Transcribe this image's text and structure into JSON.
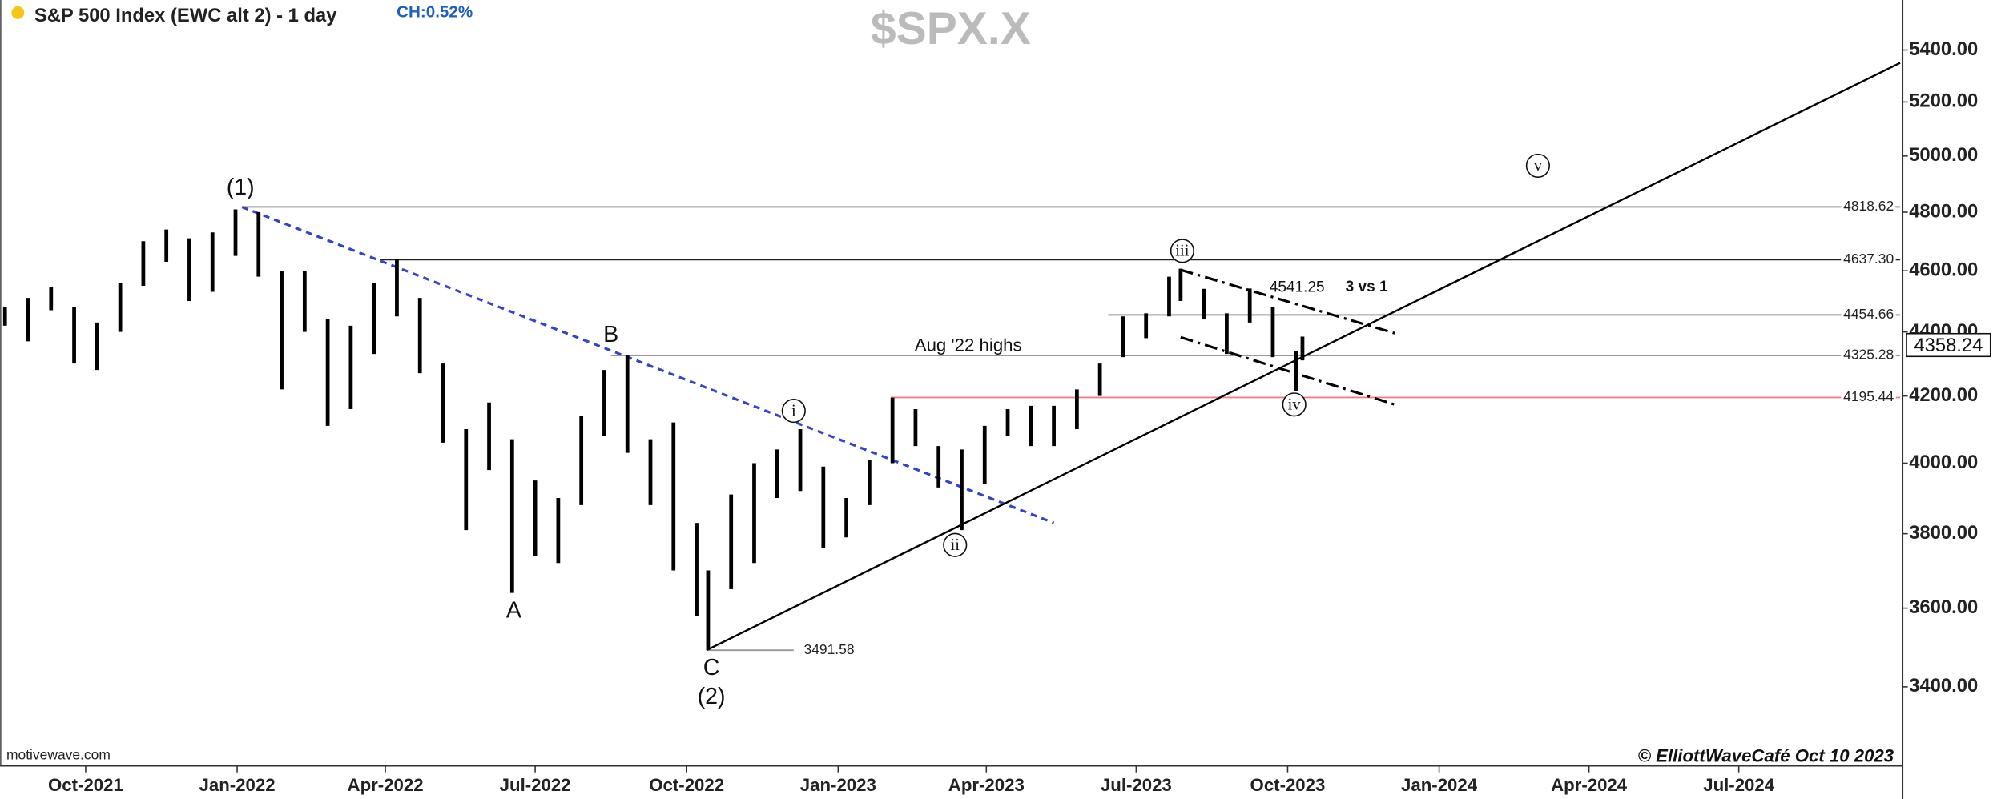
{
  "chart_data": {
    "type": "ohlc",
    "title": "S&P 500 Index (EWC alt 2) - 1 day",
    "change": "CH:0.52%",
    "symbol": "$SPX.X",
    "source": "motivewave.com",
    "credit": "© ElliottWaveCafé Oct 10 2023",
    "log_scale": true,
    "color": "#000000",
    "x": [
      "2021-08-13",
      "2021-08-27",
      "2021-09-10",
      "2021-09-24",
      "2021-10-08",
      "2021-10-22",
      "2021-11-05",
      "2021-11-19",
      "2021-12-03",
      "2021-12-17",
      "2021-12-31",
      "2022-01-14",
      "2022-01-28",
      "2022-02-11",
      "2022-02-25",
      "2022-03-11",
      "2022-03-25",
      "2022-04-08",
      "2022-04-22",
      "2022-05-06",
      "2022-05-20",
      "2022-06-03",
      "2022-06-17",
      "2022-07-01",
      "2022-07-15",
      "2022-07-29",
      "2022-08-12",
      "2022-08-26",
      "2022-09-09",
      "2022-09-23",
      "2022-10-07",
      "2022-10-14",
      "2022-10-28",
      "2022-11-11",
      "2022-11-25",
      "2022-12-09",
      "2022-12-23",
      "2023-01-06",
      "2023-01-20",
      "2023-02-03",
      "2023-02-17",
      "2023-03-03",
      "2023-03-17",
      "2023-03-31",
      "2023-04-14",
      "2023-04-28",
      "2023-05-12",
      "2023-05-26",
      "2023-06-09",
      "2023-06-23",
      "2023-07-07",
      "2023-07-21",
      "2023-07-28",
      "2023-08-11",
      "2023-08-25",
      "2023-09-08",
      "2023-09-22",
      "2023-10-06",
      "2023-10-10"
    ],
    "high": [
      4480,
      4510,
      4545,
      4480,
      4430,
      4560,
      4700,
      4740,
      4710,
      4730,
      4810,
      4800,
      4600,
      4600,
      4440,
      4420,
      4560,
      4640,
      4510,
      4300,
      4100,
      4180,
      4070,
      3950,
      3900,
      4140,
      4280,
      4325,
      4070,
      4120,
      3830,
      3700,
      3910,
      4000,
      4040,
      4100,
      3990,
      3900,
      4010,
      4195,
      4160,
      4050,
      4040,
      4110,
      4160,
      4170,
      4170,
      4220,
      4300,
      4450,
      4460,
      4580,
      4607,
      4540,
      4460,
      4541,
      4480,
      4340,
      4385
    ],
    "low": [
      4420,
      4370,
      4470,
      4300,
      4280,
      4400,
      4550,
      4630,
      4500,
      4530,
      4650,
      4580,
      4220,
      4400,
      4110,
      4160,
      4330,
      4450,
      4270,
      4060,
      3810,
      3980,
      3640,
      3740,
      3720,
      3880,
      4080,
      4030,
      3880,
      3700,
      3580,
      3492,
      3650,
      3720,
      3900,
      3920,
      3760,
      3790,
      3880,
      4000,
      4050,
      3930,
      3810,
      3940,
      4080,
      4050,
      4050,
      4100,
      4200,
      4320,
      4380,
      4450,
      4500,
      4440,
      4330,
      4430,
      4320,
      4216,
      4310
    ],
    "xlim": [
      "2021-08-10",
      "2024-10-07"
    ],
    "ylim": [
      3210,
      5600
    ],
    "xticks": [
      {
        "value": "2021-10-01",
        "label": "Oct-2021"
      },
      {
        "value": "2022-01-01",
        "label": "Jan-2022"
      },
      {
        "value": "2022-04-01",
        "label": "Apr-2022"
      },
      {
        "value": "2022-07-01",
        "label": "Jul-2022"
      },
      {
        "value": "2022-10-01",
        "label": "Oct-2022"
      },
      {
        "value": "2023-01-01",
        "label": "Jan-2023"
      },
      {
        "value": "2023-04-01",
        "label": "Apr-2023"
      },
      {
        "value": "2023-07-01",
        "label": "Jul-2023"
      },
      {
        "value": "2023-10-01",
        "label": "Oct-2023"
      },
      {
        "value": "2024-01-01",
        "label": "Jan-2024"
      },
      {
        "value": "2024-04-01",
        "label": "Apr-2024"
      },
      {
        "value": "2024-07-01",
        "label": "Jul-2024"
      }
    ],
    "yticks": [
      {
        "value": 3400,
        "label": "3400.00"
      },
      {
        "value": 3600,
        "label": "3600.00"
      },
      {
        "value": 3800,
        "label": "3800.00"
      },
      {
        "value": 4000,
        "label": "4000.00"
      },
      {
        "value": 4200,
        "label": "4200.00"
      },
      {
        "value": 4400,
        "label": "4400.00"
      },
      {
        "value": 4600,
        "label": "4600.00"
      },
      {
        "value": 4800,
        "label": "4800.00"
      },
      {
        "value": 5000,
        "label": "5000.00"
      },
      {
        "value": 5200,
        "label": "5200.00"
      },
      {
        "value": 5400,
        "label": "5400.00"
      }
    ],
    "last": {
      "value": 4358.24,
      "label": "4358.24"
    },
    "levels": [
      {
        "value": 4818.62,
        "label": "4818.62",
        "start": "2022-01-04",
        "color": "#999999"
      },
      {
        "value": 4637.3,
        "label": "4637.30",
        "start": "2022-03-29",
        "color": "#222222"
      },
      {
        "value": 4454.66,
        "label": "4454.66",
        "start": "2023-06-14",
        "color": "#999999"
      },
      {
        "value": 4325.28,
        "label": "4325.28",
        "start": "2022-08-16",
        "color": "#999999"
      },
      {
        "value": 4195.44,
        "label": "4195.44",
        "start": "2023-02-02",
        "color": "#f08080"
      },
      {
        "value": 3491.58,
        "label": "3491.58",
        "start": "2022-10-13",
        "end": "2022-12-05",
        "color": "#999999"
      }
    ],
    "trendlines": [
      {
        "color": "#3344cc",
        "dash": "5,4",
        "points": [
          [
            "2022-01-04",
            4818
          ],
          [
            "2023-05-12",
            3830
          ]
        ]
      },
      {
        "color": "#000000",
        "dash": "",
        "points": [
          [
            "2022-10-13",
            3491.58
          ],
          [
            "2024-10-07",
            5350
          ]
        ]
      },
      {
        "color": "#000000",
        "dash": "10,4,2,4",
        "points": [
          [
            "2023-07-28",
            4603
          ],
          [
            "2023-12-05",
            4396
          ]
        ]
      },
      {
        "color": "#000000",
        "dash": "10,4,2,4",
        "points": [
          [
            "2023-07-28",
            4383
          ],
          [
            "2023-12-05",
            4174
          ]
        ]
      }
    ],
    "annotations": [
      {
        "text": "(1)",
        "x": "2022-01-03",
        "y": 4888,
        "style": "large"
      },
      {
        "text": "B",
        "x": "2022-08-16",
        "y": 4392,
        "style": "large"
      },
      {
        "text": "A",
        "x": "2022-06-18",
        "y": 3594,
        "style": "large"
      },
      {
        "text": "C",
        "x": "2022-10-16",
        "y": 3448,
        "style": "large"
      },
      {
        "text": "(2)",
        "x": "2022-10-16",
        "y": 3376,
        "style": "large"
      },
      {
        "text": "i",
        "x": "2022-12-05",
        "y": 4155,
        "style": "circle"
      },
      {
        "text": "ii",
        "x": "2023-03-13",
        "y": 3769,
        "style": "circle"
      },
      {
        "text": "iii",
        "x": "2023-07-29",
        "y": 4667,
        "style": "circle"
      },
      {
        "text": "iv",
        "x": "2023-10-05",
        "y": 4174,
        "style": "circle"
      },
      {
        "text": "v",
        "x": "2024-03-01",
        "y": 4965,
        "style": "circle"
      },
      {
        "text": "Aug '22 highs",
        "x": "2023-03-21",
        "y": 4358,
        "style": "medium"
      },
      {
        "text": "4541.25",
        "x": "2023-09-20",
        "y": 4547,
        "style": "small"
      },
      {
        "text": "3 vs 1",
        "x": "2023-11-18",
        "y": 4549,
        "style": "bold"
      }
    ]
  }
}
